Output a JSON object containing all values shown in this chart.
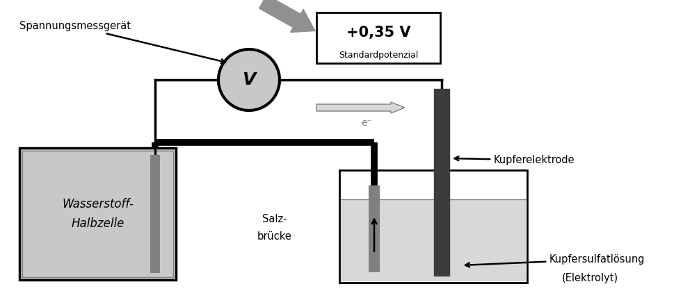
{
  "bg_color": "#ffffff",
  "line_color": "#000000",
  "dark_gray": "#3c3c3c",
  "medium_gray": "#808080",
  "light_gray": "#c8c8c8",
  "lighter_gray": "#d8d8d8",
  "arrow_gray": "#909090",
  "voltage_text": "+0,35 V",
  "standardpotenzial_text": "Standardpotenzial",
  "spannungsmessgeraet_text": "Spannungsmessgerät",
  "wasserstoff_text1": "Wasserstoff-",
  "wasserstoff_text2": "Halbzelle",
  "salzbruecke_text1": "Salz-",
  "salzbruecke_text2": "brücke",
  "kupferelektrode_text": "Kupferelektrode",
  "kupfersulfat_text1": "Kupfersulfatlösung",
  "kupfersulfat_text2": "(Elektrolyt)",
  "eminus_text": "e⁻"
}
